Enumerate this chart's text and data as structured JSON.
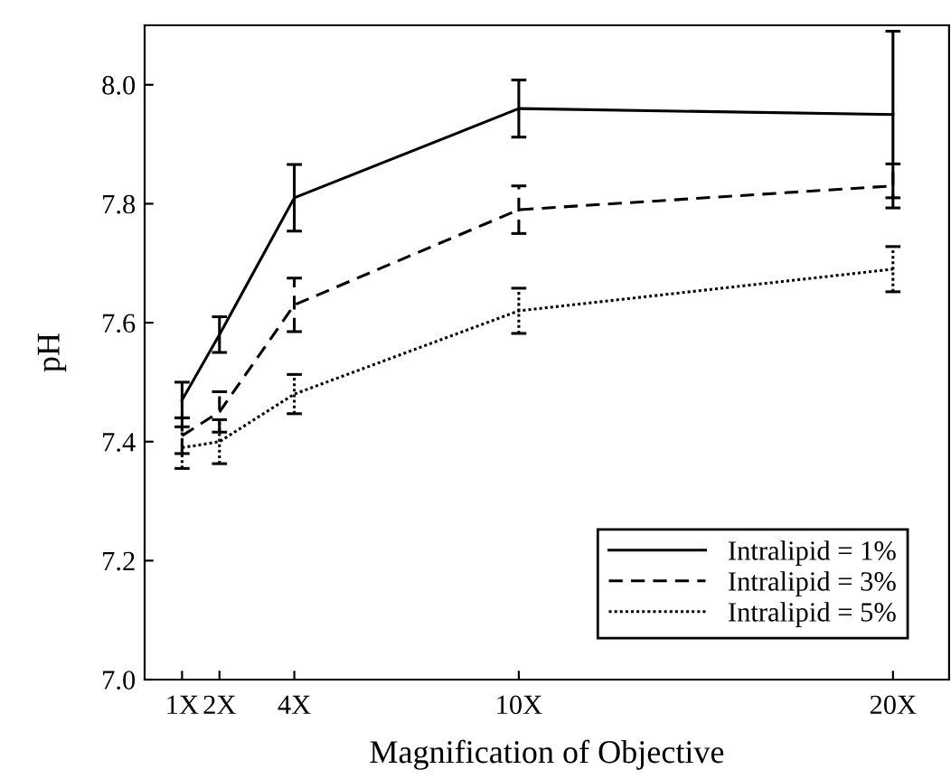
{
  "chart_data": {
    "type": "line",
    "xlabel": "Magnification of Objective",
    "ylabel": "pH",
    "x": [
      1,
      2,
      4,
      10,
      20
    ],
    "xlim": [
      0,
      21.5
    ],
    "xticks": [
      {
        "value": 1,
        "label": "1X"
      },
      {
        "value": 2,
        "label": "2X"
      },
      {
        "value": 4,
        "label": "4X"
      },
      {
        "value": 10,
        "label": "10X"
      },
      {
        "value": 20,
        "label": "20X"
      }
    ],
    "ylim": [
      7.0,
      8.1
    ],
    "yticks": [
      {
        "value": 7.0,
        "label": "7.0"
      },
      {
        "value": 7.2,
        "label": "7.2"
      },
      {
        "value": 7.4,
        "label": "7.4"
      },
      {
        "value": 7.6,
        "label": "7.6"
      },
      {
        "value": 7.8,
        "label": "7.8"
      },
      {
        "value": 8.0,
        "label": "8.0"
      }
    ],
    "series": [
      {
        "name": "Intralipid = 1%",
        "color": "#000000",
        "line_style": "solid",
        "values": [
          7.47,
          7.58,
          7.81,
          7.96,
          7.95
        ],
        "errors": [
          0.03,
          0.03,
          0.056,
          0.048,
          0.14
        ]
      },
      {
        "name": "Intralipid = 3%",
        "color": "#000000",
        "line_style": "dashed",
        "values": [
          7.41,
          7.45,
          7.63,
          7.79,
          7.83
        ],
        "errors": [
          0.03,
          0.034,
          0.045,
          0.04,
          0.037
        ]
      },
      {
        "name": "Intralipid = 5%",
        "color": "#000000",
        "line_style": "dotted",
        "values": [
          7.39,
          7.4,
          7.48,
          7.62,
          7.69
        ],
        "errors": [
          0.035,
          0.037,
          0.033,
          0.038,
          0.038
        ]
      }
    ],
    "marker": "none",
    "grid": false,
    "legend": "bottom right"
  }
}
